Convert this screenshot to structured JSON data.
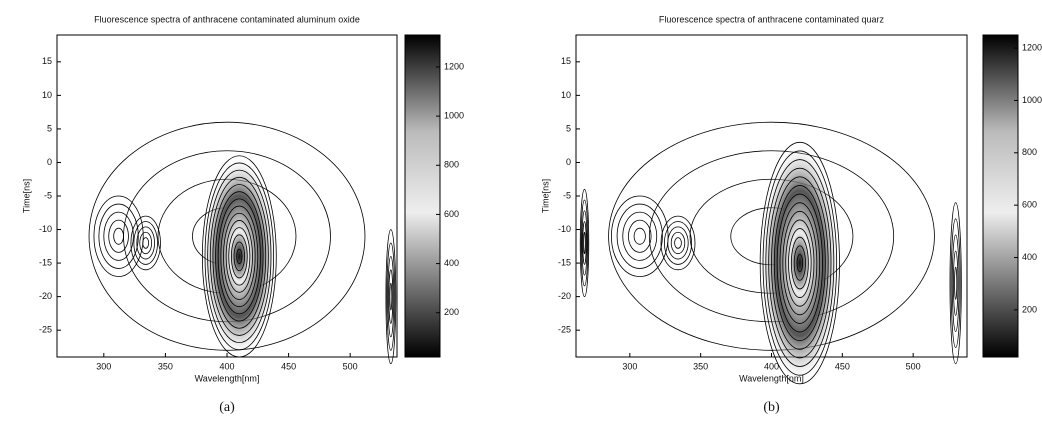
{
  "chart_data": [
    {
      "type": "contour",
      "title": "Fluorescence spectra of anthracene contaminated aluminum oxide",
      "panel_label": "(a)",
      "xlabel": "Wavelength[nm]",
      "ylabel": "Time[ns]",
      "xlim": [
        262,
        538
      ],
      "ylim": [
        -29,
        19
      ],
      "xticks": [
        300,
        350,
        400,
        450,
        500
      ],
      "yticks": [
        -25,
        -20,
        -15,
        -10,
        -5,
        0,
        5,
        10,
        15
      ],
      "colorbar": {
        "lim": [
          20,
          1330
        ],
        "ticks": [
          200,
          400,
          600,
          800,
          1000,
          1200
        ]
      },
      "peaks": [
        {
          "x": 400,
          "y": -11,
          "rx": 112,
          "ry": 17
        },
        {
          "x": 312,
          "y": -11,
          "rx": 20,
          "ry": 6
        },
        {
          "x": 334,
          "y": -12,
          "rx": 12,
          "ry": 4
        },
        {
          "x": 410,
          "y": -14,
          "rx": 30,
          "ry": 15
        },
        {
          "x": 533,
          "y": -20,
          "rx": 4,
          "ry": 10
        }
      ]
    },
    {
      "type": "contour",
      "title": "Fluorescence spectra of anthracene contaminated quarz",
      "panel_label": "(b)",
      "xlabel": "Wavelength[nm]",
      "ylabel": "Time[ns]",
      "xlim": [
        262,
        538
      ],
      "ylim": [
        -29,
        19
      ],
      "xticks": [
        300,
        350,
        400,
        450,
        500
      ],
      "yticks": [
        -25,
        -20,
        -15,
        -10,
        -5,
        0,
        5,
        10,
        15
      ],
      "colorbar": {
        "lim": [
          20,
          1250
        ],
        "ticks": [
          200,
          400,
          600,
          800,
          1000,
          1200
        ]
      },
      "peaks": [
        {
          "x": 400,
          "y": -11,
          "rx": 115,
          "ry": 17
        },
        {
          "x": 307,
          "y": -11,
          "rx": 20,
          "ry": 6
        },
        {
          "x": 334,
          "y": -12,
          "rx": 12,
          "ry": 4
        },
        {
          "x": 420,
          "y": -15,
          "rx": 28,
          "ry": 18
        },
        {
          "x": 268,
          "y": -12,
          "rx": 3,
          "ry": 8
        },
        {
          "x": 530,
          "y": -18,
          "rx": 4,
          "ry": 12
        }
      ]
    }
  ]
}
